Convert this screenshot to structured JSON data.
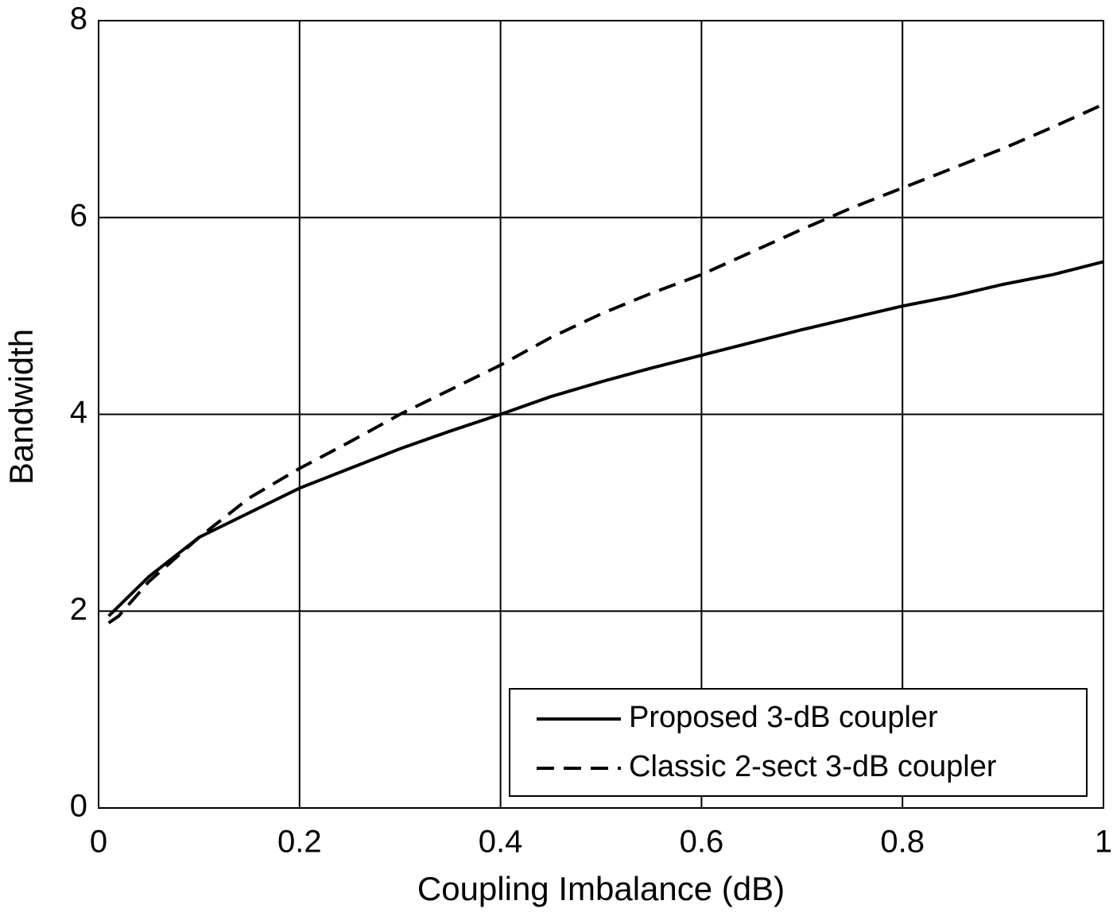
{
  "chart_data": {
    "type": "line",
    "xlabel": "Coupling Imbalance (dB)",
    "ylabel": "Bandwidth",
    "x": [
      0.01,
      0.02,
      0.05,
      0.1,
      0.15,
      0.2,
      0.25,
      0.3,
      0.35,
      0.4,
      0.45,
      0.5,
      0.55,
      0.6,
      0.65,
      0.7,
      0.75,
      0.8,
      0.85,
      0.9,
      0.95,
      1.0
    ],
    "series": [
      {
        "name": "Proposed 3-dB coupler",
        "color": "#000000",
        "linestyle": "solid",
        "values": [
          1.95,
          2.05,
          2.35,
          2.75,
          3.0,
          3.25,
          3.45,
          3.65,
          3.83,
          4.0,
          4.18,
          4.33,
          4.47,
          4.6,
          4.73,
          4.86,
          4.98,
          5.1,
          5.2,
          5.32,
          5.42,
          5.55
        ]
      },
      {
        "name": "Classic 2-sect 3-dB coupler",
        "color": "#000000",
        "linestyle": "dashed",
        "values": [
          1.88,
          1.95,
          2.3,
          2.75,
          3.15,
          3.45,
          3.72,
          4.0,
          4.25,
          4.5,
          4.78,
          5.02,
          5.23,
          5.42,
          5.65,
          5.88,
          6.1,
          6.3,
          6.5,
          6.7,
          6.92,
          7.15
        ]
      }
    ],
    "xlim": [
      0,
      1
    ],
    "xticks": [
      0,
      0.2,
      0.4,
      0.6,
      0.8,
      1
    ],
    "ylim": [
      0,
      8
    ],
    "yticks": [
      0,
      2,
      4,
      6,
      8
    ],
    "grid": true,
    "legend": "lower right"
  }
}
